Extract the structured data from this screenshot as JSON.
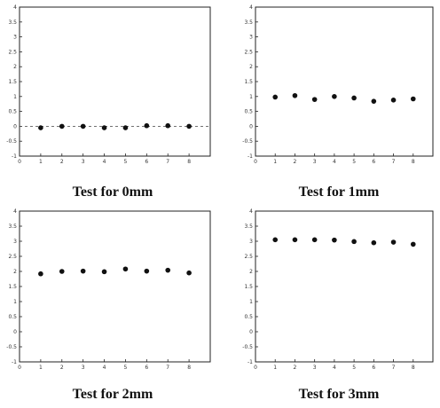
{
  "chart_data": [
    {
      "type": "scatter",
      "title": "Test for 0mm",
      "x": [
        1,
        2,
        3,
        4,
        5,
        6,
        7,
        8
      ],
      "y": [
        -0.05,
        0.0,
        0.0,
        -0.05,
        -0.05,
        0.02,
        0.02,
        0.0
      ],
      "xlim": [
        0,
        9
      ],
      "ylim": [
        -1,
        4
      ],
      "xticks": [
        "0",
        "1",
        "2",
        "3",
        "4",
        "5",
        "6",
        "7",
        "8"
      ],
      "yticks": [
        "-1",
        "-0.5",
        "0",
        "0.5",
        "1",
        "1.5",
        "2",
        "2.5",
        "3",
        "3.5",
        "4"
      ],
      "dashed_line_at_y": 0,
      "grid": false
    },
    {
      "type": "scatter",
      "title": "Test for 1mm",
      "x": [
        1,
        2,
        3,
        4,
        5,
        6,
        7,
        8
      ],
      "y": [
        0.98,
        1.03,
        0.9,
        1.0,
        0.95,
        0.84,
        0.88,
        0.92
      ],
      "xlim": [
        0,
        9
      ],
      "ylim": [
        -1,
        4
      ],
      "xticks": [
        "0",
        "1",
        "2",
        "3",
        "4",
        "5",
        "6",
        "7",
        "8"
      ],
      "yticks": [
        "-1",
        "-0.5",
        "0",
        "0.5",
        "1",
        "1.5",
        "2",
        "2.5",
        "3",
        "3.5",
        "4"
      ],
      "grid": false
    },
    {
      "type": "scatter",
      "title": "Test for 2mm",
      "x": [
        1,
        2,
        3,
        4,
        5,
        6,
        7,
        8
      ],
      "y": [
        1.92,
        2.0,
        2.01,
        1.99,
        2.08,
        2.01,
        2.04,
        1.95
      ],
      "xlim": [
        0,
        9
      ],
      "ylim": [
        -1,
        4
      ],
      "xticks": [
        "0",
        "1",
        "2",
        "3",
        "4",
        "5",
        "6",
        "7",
        "8"
      ],
      "yticks": [
        "-1",
        "-0.5",
        "0",
        "0.5",
        "1",
        "1.5",
        "2",
        "2.5",
        "3",
        "3.5",
        "4"
      ],
      "grid": false
    },
    {
      "type": "scatter",
      "title": "Test for 3mm",
      "x": [
        1,
        2,
        3,
        4,
        5,
        6,
        7,
        8
      ],
      "y": [
        3.05,
        3.05,
        3.05,
        3.04,
        2.99,
        2.95,
        2.97,
        2.9
      ],
      "xlim": [
        0,
        9
      ],
      "ylim": [
        -1,
        4
      ],
      "xticks": [
        "0",
        "1",
        "2",
        "3",
        "4",
        "5",
        "6",
        "7",
        "8"
      ],
      "yticks": [
        "-1",
        "-0.5",
        "0",
        "0.5",
        "1",
        "1.5",
        "2",
        "2.5",
        "3",
        "3.5",
        "4"
      ],
      "grid": false
    }
  ]
}
